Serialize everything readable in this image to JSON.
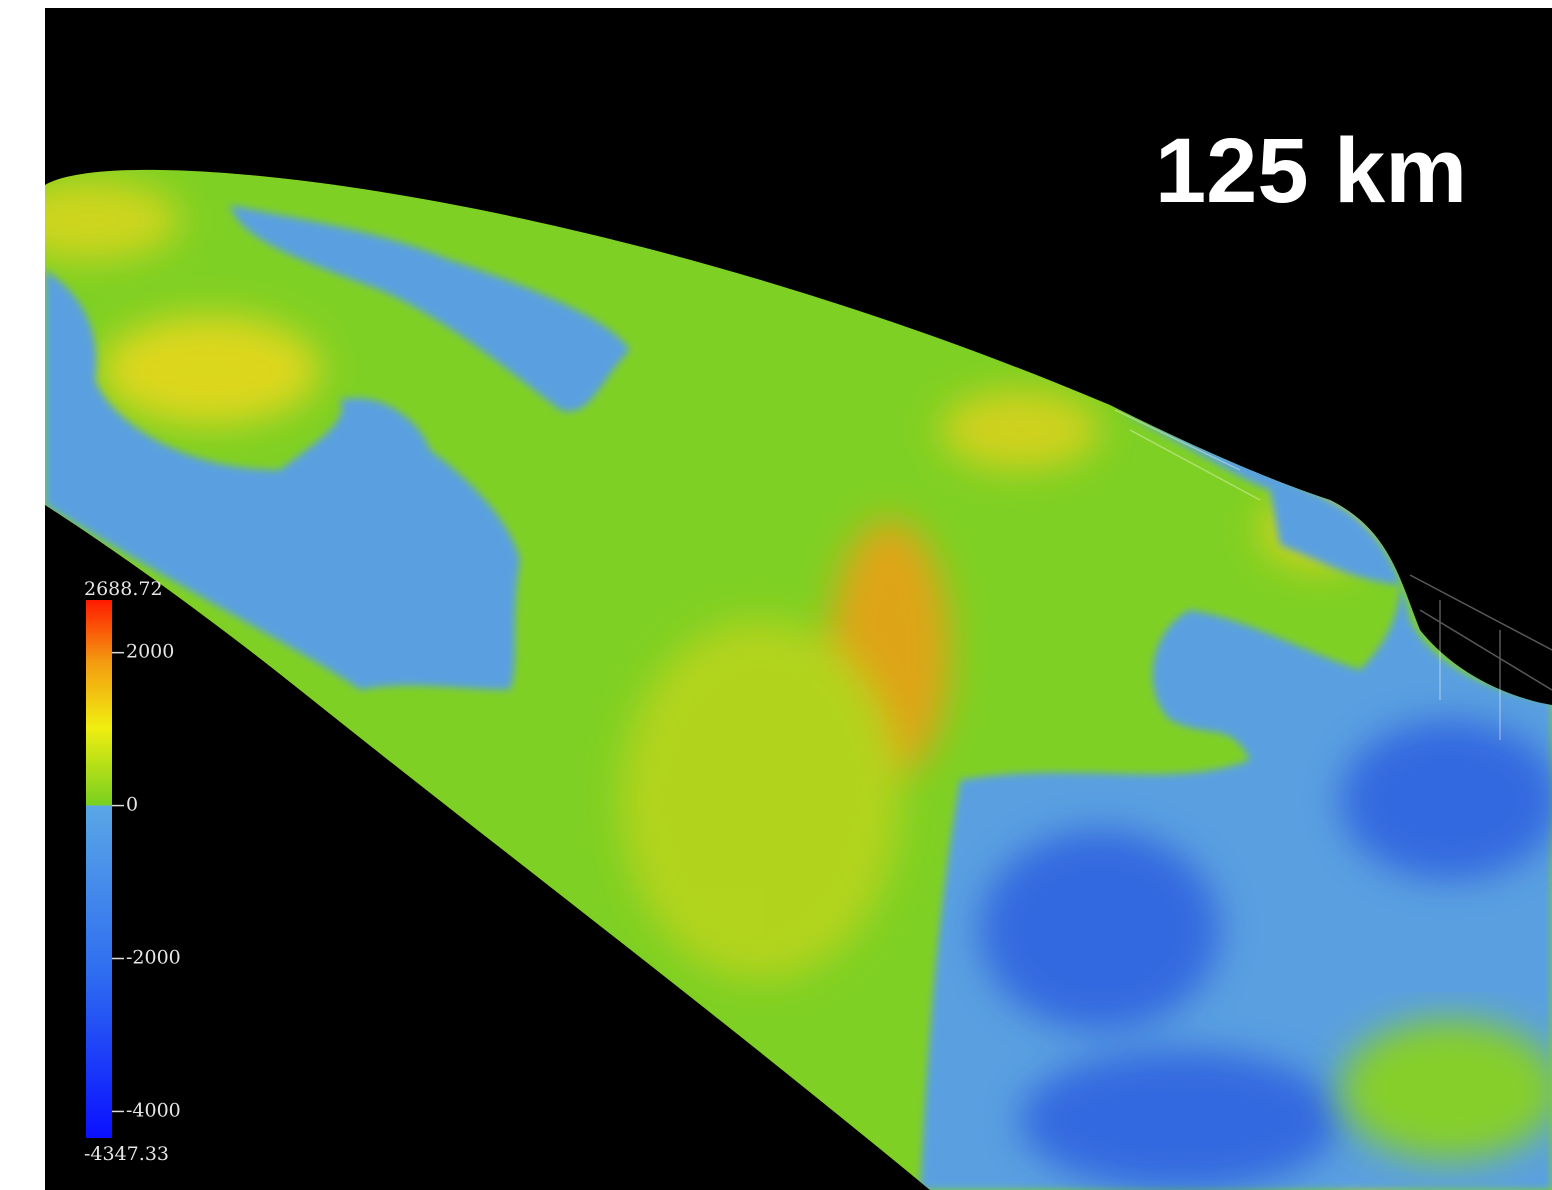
{
  "label": "125 km",
  "colorbar": {
    "range": [
      -4347.33,
      2688.72
    ],
    "ticks": [
      2000,
      0,
      -2000,
      -4000
    ]
  }
}
